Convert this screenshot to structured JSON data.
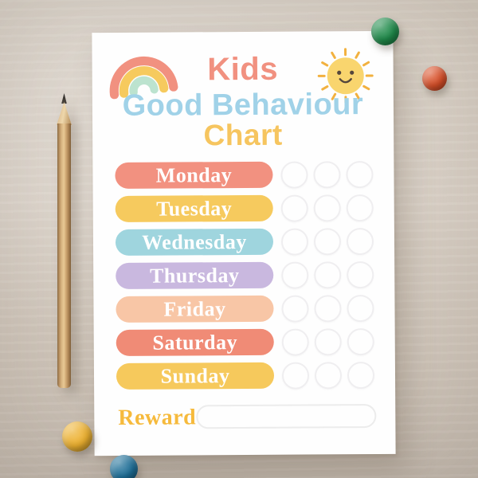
{
  "scene": {
    "surface": {
      "description": "beige desk surface",
      "color": "#d9d0c5"
    },
    "pencil": {
      "description": "wooden pencil",
      "wood_color": "#c59e6c",
      "tip_color": "#3e3a36"
    },
    "magnets": [
      {
        "id": "green",
        "color": "#1f8a4a"
      },
      {
        "id": "orange",
        "color": "#d94f28"
      },
      {
        "id": "yellow",
        "color": "#ecb02f"
      },
      {
        "id": "teal",
        "color": "#1d6e97"
      }
    ]
  },
  "poster": {
    "title_top": "Kids",
    "title_main": "Good Behaviour",
    "title_sub": "Chart",
    "reward_label": "Reward",
    "reward_value": "",
    "slots_per_day": 3,
    "colors": {
      "title_top": "#f19180",
      "title_main": "#a0d2e8",
      "title_sub": "#f6c55f",
      "reward_text": "#f6ba3c",
      "rainbow_outer": "#f19180",
      "rainbow_middle": "#f6ca5e",
      "rainbow_inner": "#bce3cf",
      "sun_body": "#f9d56e",
      "sun_rays": "#f2b13f",
      "sun_face": "#54463c",
      "slot_ring": "#efeef0"
    },
    "days": [
      {
        "label": "Monday",
        "color": "#f29180"
      },
      {
        "label": "Tuesday",
        "color": "#f6ca5e"
      },
      {
        "label": "Wednesday",
        "color": "#9fd5de"
      },
      {
        "label": "Thursday",
        "color": "#c9b8df"
      },
      {
        "label": "Friday",
        "color": "#f8c6a6"
      },
      {
        "label": "Saturday",
        "color": "#f08b76"
      },
      {
        "label": "Sunday",
        "color": "#f6c95c"
      }
    ]
  }
}
